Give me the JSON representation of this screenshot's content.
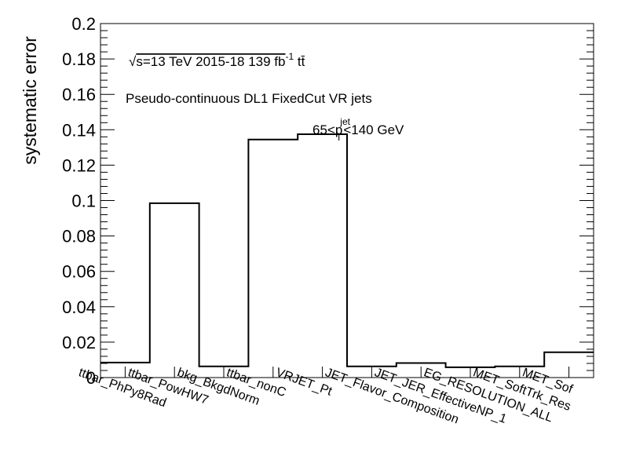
{
  "chart_data": {
    "type": "bar",
    "style": "step-histogram",
    "title": "",
    "ylabel": "systematic error",
    "xlabel": "",
    "ylim": [
      0,
      0.2
    ],
    "yticks": [
      "0",
      "0.02",
      "0.04",
      "0.06",
      "0.08",
      "0.1",
      "0.12",
      "0.14",
      "0.16",
      "0.18",
      "0.2"
    ],
    "categories": [
      "ttbar_PhPy8Rad",
      "ttbar_PowHW7",
      "bkg_BkgdNorm",
      "ttbar_nonC",
      "VRJET_Pt",
      "JET_Flavor_Composition",
      "JET_JER_EffectiveNP_1",
      "EG_RESOLUTION_ALL",
      "MET_SoftTrk_Res",
      "MET_Sof"
    ],
    "values": [
      0.0085,
      0.0985,
      0.0063,
      0.1345,
      0.1375,
      0.0063,
      0.0082,
      0.0058,
      0.0063,
      0.0143
    ],
    "grid": false,
    "legend": "none",
    "annotations": {
      "sqrt": "√",
      "line1": "s=13 TeV  2015-18  139 fb",
      "line1_sup": "-1",
      "line1_tail": " tt̄",
      "line2": "Pseudo-continuous DL1 FixedCut VR jets",
      "line3_a": "65<p",
      "line3_sup": "jet",
      "line3_sub": "T",
      "line3_b": "<140 GeV"
    },
    "line_color": "#000000"
  }
}
